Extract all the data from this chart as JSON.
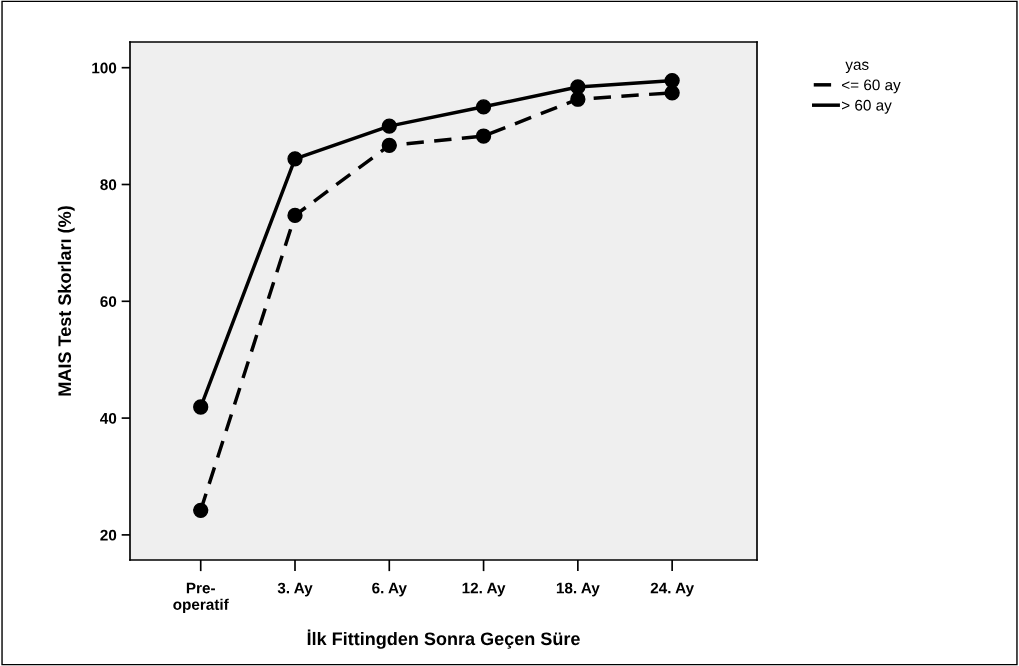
{
  "chart_data": {
    "type": "line",
    "xlabel": "İlk Fittingden Sonra Geçen Süre",
    "ylabel": "MAIS Test Skorları (%)",
    "legend_title": "yas",
    "categories": [
      "Pre-\noperatif",
      "3. Ay",
      "6. Ay",
      "12. Ay",
      "18. Ay",
      "24. Ay"
    ],
    "series": [
      {
        "name": "<= 60 ay",
        "color": "#000000",
        "line_style": "dashed",
        "values": [
          24.2,
          74.7,
          86.7,
          88.3,
          94.6,
          95.7
        ]
      },
      {
        "name": "> 60 ay",
        "color": "#000000",
        "line_style": "solid",
        "values": [
          41.9,
          84.4,
          90.0,
          93.3,
          96.7,
          97.8
        ]
      }
    ],
    "ylim": [
      15.7,
      104.4
    ],
    "yticks": [
      20,
      40,
      60,
      80,
      100
    ],
    "marker": "circle",
    "legend": "top right",
    "grid": false
  }
}
